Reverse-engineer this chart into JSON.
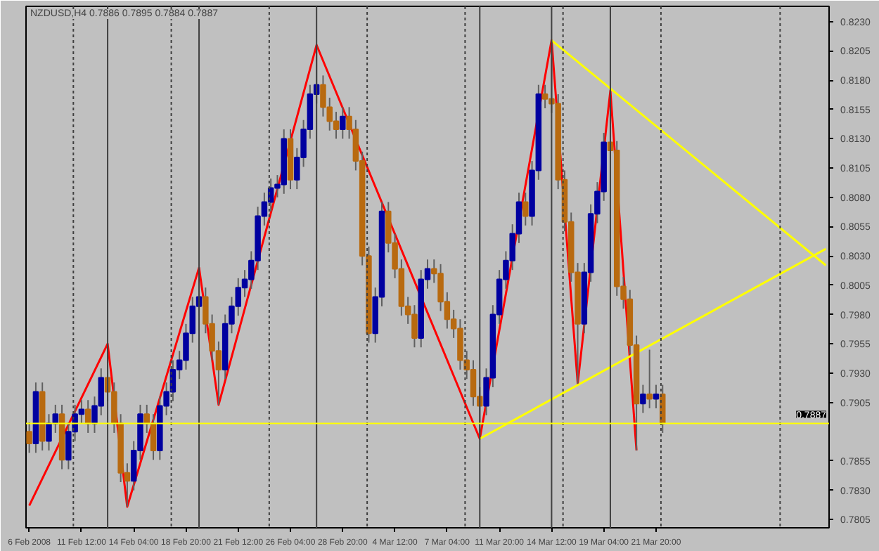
{
  "chart_data": {
    "type": "candlestick",
    "title": "NZDUSD,H4 0.7886 0.7895 0.7884 0.7887",
    "categories": [
      "6 Feb 2008",
      null,
      null,
      null,
      null,
      null,
      null,
      null,
      "11 Feb 12:00",
      null,
      null,
      null,
      null,
      null,
      null,
      null,
      "14 Feb 04:00",
      null,
      null,
      null,
      null,
      null,
      null,
      null,
      "18 Feb 20:00",
      null,
      null,
      null,
      null,
      null,
      null,
      null,
      "21 Feb 12:00",
      null,
      null,
      null,
      null,
      null,
      null,
      null,
      "26 Feb 04:00",
      null,
      null,
      null,
      null,
      null,
      null,
      null,
      "28 Feb 20:00",
      null,
      null,
      null,
      null,
      null,
      null,
      null,
      "4 Mar 12:00",
      null,
      null,
      null,
      null,
      null,
      null,
      null,
      "7 Mar 04:00",
      null,
      null,
      null,
      null,
      null,
      null,
      null,
      "11 Mar 20:00",
      null,
      null,
      null,
      null,
      null,
      null,
      null,
      "14 Mar 12:00",
      null,
      null,
      null,
      null,
      null,
      null,
      null,
      "19 Mar 04:00",
      null,
      null,
      null,
      null,
      null,
      null,
      null,
      "21 Mar 20:00",
      null,
      null,
      null,
      null,
      null,
      null,
      null,
      null,
      null,
      null,
      null,
      null,
      null,
      null,
      null,
      null,
      null,
      null,
      null,
      null,
      null,
      null,
      null,
      null,
      null,
      null
    ],
    "ylim": [
      0.7798,
      0.8243
    ],
    "yticks": [
      0.7805,
      {
        "value": 0.783,
        "label": "0.7830"
      },
      0.7855,
      0.7905,
      {
        "value": 0.793,
        "label": "0.7930"
      },
      0.7955,
      {
        "value": 0.798,
        "label": "0.7980"
      },
      0.8005,
      {
        "value": 0.803,
        "label": "0.8030"
      },
      0.8055,
      {
        "value": 0.808,
        "label": "0.8080"
      },
      0.8105,
      {
        "value": 0.813,
        "label": "0.8130"
      },
      0.8155,
      {
        "value": 0.818,
        "label": "0.8180"
      },
      0.8205,
      {
        "value": 0.823,
        "label": "0.8230"
      }
    ],
    "ohlc": [
      [
        0.788,
        0.7888,
        0.7862,
        0.787
      ],
      [
        0.787,
        0.7922,
        0.7862,
        0.7914
      ],
      [
        0.7914,
        0.7922,
        0.7864,
        0.7872
      ],
      [
        0.7872,
        0.7895,
        0.7864,
        0.7887
      ],
      [
        0.7887,
        0.7903,
        0.7879,
        0.7895
      ],
      [
        0.7895,
        0.7903,
        0.7848,
        0.7856
      ],
      [
        0.7856,
        0.7888,
        0.7848,
        0.788
      ],
      [
        0.788,
        0.7903,
        0.7872,
        0.7895
      ],
      [
        0.7895,
        0.7907,
        0.7887,
        0.7899
      ],
      [
        0.7899,
        0.7907,
        0.7879,
        0.7887
      ],
      [
        0.7887,
        0.791,
        0.7879,
        0.7902
      ],
      [
        0.7902,
        0.7934,
        0.7894,
        0.7926
      ],
      [
        0.7926,
        0.7955,
        0.7906,
        0.7914
      ],
      [
        0.7914,
        0.7922,
        0.7879,
        0.7887
      ],
      [
        0.7887,
        0.7895,
        0.7837,
        0.7845
      ],
      [
        0.7845,
        0.7853,
        0.7816,
        0.7838
      ],
      [
        0.7838,
        0.7872,
        0.783,
        0.7864
      ],
      [
        0.7864,
        0.7903,
        0.7856,
        0.7895
      ],
      [
        0.7895,
        0.7903,
        0.7879,
        0.7887
      ],
      [
        0.7887,
        0.7895,
        0.7856,
        0.7864
      ],
      [
        0.7864,
        0.791,
        0.7856,
        0.7902
      ],
      [
        0.7902,
        0.7922,
        0.7894,
        0.7914
      ],
      [
        0.7914,
        0.7941,
        0.7906,
        0.7933
      ],
      [
        0.7933,
        0.7949,
        0.7925,
        0.7941
      ],
      [
        0.7941,
        0.7972,
        0.7933,
        0.7964
      ],
      [
        0.7964,
        0.7995,
        0.7956,
        0.7987
      ],
      [
        0.7987,
        0.802,
        0.7979,
        0.7995
      ],
      [
        0.7995,
        0.8003,
        0.7964,
        0.7972
      ],
      [
        0.7972,
        0.798,
        0.7941,
        0.7949
      ],
      [
        0.7949,
        0.7957,
        0.7903,
        0.7933
      ],
      [
        0.7933,
        0.798,
        0.7925,
        0.7972
      ],
      [
        0.7972,
        0.7995,
        0.7964,
        0.7987
      ],
      [
        0.7987,
        0.8011,
        0.7979,
        0.8003
      ],
      [
        0.8003,
        0.8018,
        0.7995,
        0.801
      ],
      [
        0.801,
        0.8034,
        0.8002,
        0.8026
      ],
      [
        0.8026,
        0.8072,
        0.8018,
        0.8064
      ],
      [
        0.8064,
        0.8084,
        0.8056,
        0.8076
      ],
      [
        0.8076,
        0.8096,
        0.8068,
        0.8088
      ],
      [
        0.8088,
        0.8099,
        0.808,
        0.8091
      ],
      [
        0.8091,
        0.8138,
        0.8083,
        0.813
      ],
      [
        0.813,
        0.8138,
        0.8087,
        0.8095
      ],
      [
        0.8095,
        0.8122,
        0.8087,
        0.8114
      ],
      [
        0.8114,
        0.8146,
        0.8106,
        0.8138
      ],
      [
        0.8138,
        0.8176,
        0.813,
        0.8168
      ],
      [
        0.8168,
        0.821,
        0.816,
        0.8176
      ],
      [
        0.8176,
        0.8184,
        0.8149,
        0.8157
      ],
      [
        0.8157,
        0.8165,
        0.8137,
        0.8145
      ],
      [
        0.8145,
        0.8153,
        0.813,
        0.8138
      ],
      [
        0.8138,
        0.8157,
        0.813,
        0.8149
      ],
      [
        0.8149,
        0.8157,
        0.813,
        0.8138
      ],
      [
        0.8138,
        0.8146,
        0.8103,
        0.8111
      ],
      [
        0.8111,
        0.8119,
        0.8022,
        0.803
      ],
      [
        0.803,
        0.8038,
        0.7956,
        0.7964
      ],
      [
        0.7964,
        0.8003,
        0.7956,
        0.7995
      ],
      [
        0.7995,
        0.8076,
        0.7987,
        0.8068
      ],
      [
        0.8068,
        0.8076,
        0.8033,
        0.8041
      ],
      [
        0.8041,
        0.8049,
        0.8011,
        0.8019
      ],
      [
        0.8019,
        0.8027,
        0.7979,
        0.7987
      ],
      [
        0.7987,
        0.7995,
        0.7972,
        0.798
      ],
      [
        0.798,
        0.7988,
        0.7952,
        0.796
      ],
      [
        0.796,
        0.8018,
        0.7952,
        0.801
      ],
      [
        0.801,
        0.8027,
        0.8002,
        0.8019
      ],
      [
        0.8019,
        0.8027,
        0.8007,
        0.8015
      ],
      [
        0.8015,
        0.8023,
        0.7983,
        0.7991
      ],
      [
        0.7991,
        0.7999,
        0.7968,
        0.7976
      ],
      [
        0.7976,
        0.7984,
        0.796,
        0.7968
      ],
      [
        0.7968,
        0.7976,
        0.7933,
        0.7941
      ],
      [
        0.7941,
        0.7949,
        0.7925,
        0.7933
      ],
      [
        0.7933,
        0.7941,
        0.7902,
        0.791
      ],
      [
        0.791,
        0.7918,
        0.7874,
        0.7902
      ],
      [
        0.7902,
        0.7934,
        0.7894,
        0.7926
      ],
      [
        0.7926,
        0.7988,
        0.7918,
        0.798
      ],
      [
        0.798,
        0.8018,
        0.7972,
        0.801
      ],
      [
        0.801,
        0.8034,
        0.8002,
        0.8026
      ],
      [
        0.8026,
        0.8057,
        0.8018,
        0.8049
      ],
      [
        0.8049,
        0.8084,
        0.8041,
        0.8076
      ],
      [
        0.8076,
        0.8084,
        0.8056,
        0.8064
      ],
      [
        0.8064,
        0.8111,
        0.8056,
        0.8103
      ],
      [
        0.8103,
        0.8176,
        0.8095,
        0.8168
      ],
      [
        0.8168,
        0.8176,
        0.8156,
        0.8164
      ],
      [
        0.8164,
        0.8214,
        0.8152,
        0.816
      ],
      [
        0.816,
        0.8168,
        0.8087,
        0.8095
      ],
      [
        0.8095,
        0.8103,
        0.8051,
        0.8059
      ],
      [
        0.8059,
        0.8067,
        0.8008,
        0.8016
      ],
      [
        0.8016,
        0.8024,
        0.7921,
        0.7972
      ],
      [
        0.7972,
        0.8024,
        0.7964,
        0.8016
      ],
      [
        0.8016,
        0.8074,
        0.8008,
        0.8066
      ],
      [
        0.8066,
        0.8093,
        0.8058,
        0.8085
      ],
      [
        0.8085,
        0.8135,
        0.8077,
        0.8127
      ],
      [
        0.8127,
        0.8171,
        0.8112,
        0.812
      ],
      [
        0.812,
        0.8128,
        0.7996,
        0.8004
      ],
      [
        0.8004,
        0.8012,
        0.7985,
        0.7993
      ],
      [
        0.7993,
        0.8001,
        0.7946,
        0.7954
      ],
      [
        0.7954,
        0.7962,
        0.7864,
        0.7904
      ],
      [
        0.7904,
        0.792,
        0.7896,
        0.7912
      ],
      [
        0.7912,
        0.795,
        0.79,
        0.7908
      ],
      [
        0.7908,
        0.792,
        0.79,
        0.7912
      ],
      [
        0.7912,
        0.792,
        0.7879,
        0.7887
      ],
      null,
      null,
      null,
      null,
      null,
      null,
      null,
      null,
      null,
      null,
      null,
      null,
      null,
      null,
      null,
      null,
      null,
      null,
      null,
      null,
      null,
      null,
      null,
      null,
      null
    ],
    "colors": [
      "#b86a10",
      "#0000a0",
      "#b86a10",
      "#0000a0",
      "#0000a0",
      "#b86a10",
      "#0000a0",
      "#0000a0",
      "#0000a0",
      "#b86a10",
      "#0000a0",
      "#0000a0",
      "#b86a10",
      "#b86a10",
      "#b86a10",
      "#b86a10",
      "#0000a0",
      "#0000a0",
      "#b86a10",
      "#b86a10",
      "#0000a0",
      "#0000a0",
      "#0000a0",
      "#0000a0",
      "#0000a0",
      "#0000a0",
      "#0000a0",
      "#b86a10",
      "#b86a10",
      "#b86a10",
      "#0000a0",
      "#0000a0",
      "#0000a0",
      "#0000a0",
      "#0000a0",
      "#0000a0",
      "#0000a0",
      "#0000a0",
      "#0000a0",
      "#0000a0",
      "#b86a10",
      "#0000a0",
      "#0000a0",
      "#0000a0",
      "#0000a0",
      "#b86a10",
      "#b86a10",
      "#b86a10",
      "#0000a0",
      "#b86a10",
      "#b86a10",
      "#b86a10",
      "#b86a10",
      "#0000a0",
      "#0000a0",
      "#b86a10",
      "#b86a10",
      "#b86a10",
      "#b86a10",
      "#b86a10",
      "#0000a0",
      "#0000a0",
      "#b86a10",
      "#b86a10",
      "#b86a10",
      "#b86a10",
      "#b86a10",
      "#b86a10",
      "#b86a10",
      "#b86a10",
      "#0000a0",
      "#0000a0",
      "#0000a0",
      "#0000a0",
      "#0000a0",
      "#0000a0",
      "#b86a10",
      "#0000a0",
      "#0000a0",
      "#b86a10",
      "#b86a10",
      "#b86a10",
      "#b86a10",
      "#b86a10",
      "#b86a10",
      "#0000a0",
      "#0000a0",
      "#0000a0",
      "#0000a0",
      "#b86a10",
      "#b86a10",
      "#b86a10",
      "#b86a10",
      "#b86a10",
      "#0000a0",
      "#b86a10",
      "#0000a0",
      "#b86a10",
      null,
      null,
      null,
      null,
      null,
      null,
      null,
      null,
      null,
      null,
      null,
      null,
      null,
      null,
      null,
      null,
      null,
      null,
      null,
      null,
      null,
      null,
      null,
      null,
      null
    ],
    "series": [
      {
        "type": "line",
        "color": "#ff0000",
        "values": [
          0.7817,
          null,
          null,
          null,
          null,
          null,
          null,
          null,
          null,
          null,
          null,
          null,
          0.7955,
          null,
          null,
          0.7816,
          null,
          null,
          null,
          null,
          null,
          null,
          null,
          null,
          null,
          null,
          0.802,
          null,
          null,
          0.7903,
          null,
          null,
          null,
          null,
          null,
          null,
          null,
          null,
          null,
          null,
          null,
          null,
          null,
          null,
          0.821,
          null,
          null,
          null,
          null,
          null,
          null,
          null,
          null,
          null,
          null,
          null,
          null,
          null,
          null,
          null,
          null,
          null,
          null,
          null,
          null,
          null,
          null,
          null,
          null,
          0.7874,
          null,
          null,
          null,
          null,
          null,
          null,
          null,
          null,
          null,
          null,
          0.8214,
          null,
          null,
          null,
          0.7921,
          null,
          null,
          null,
          null,
          0.8171,
          null,
          null,
          null,
          0.7864,
          null,
          null,
          null,
          null,
          null,
          null,
          null,
          null,
          null,
          null,
          null,
          null,
          null,
          null,
          null,
          null,
          null,
          null,
          null,
          null,
          null,
          null,
          null,
          null,
          null,
          null,
          null,
          null,
          null
        ]
      },
      {
        "type": "line",
        "color": "#ffff00",
        "values": [
          null,
          null,
          null,
          null,
          null,
          null,
          null,
          null,
          null,
          null,
          null,
          null,
          null,
          null,
          null,
          null,
          null,
          null,
          null,
          null,
          null,
          null,
          null,
          null,
          null,
          null,
          null,
          null,
          null,
          null,
          null,
          null,
          null,
          null,
          null,
          null,
          null,
          null,
          null,
          null,
          null,
          null,
          null,
          null,
          null,
          null,
          null,
          null,
          null,
          null,
          null,
          null,
          null,
          null,
          null,
          null,
          null,
          null,
          null,
          null,
          null,
          null,
          null,
          null,
          null,
          null,
          null,
          null,
          null,
          null,
          null,
          null,
          null,
          null,
          null,
          null,
          null,
          null,
          null,
          null,
          0.8214,
          null,
          null,
          null,
          null,
          null,
          null,
          null,
          null,
          null,
          null,
          null,
          null,
          null,
          null,
          null,
          null,
          null,
          null,
          null,
          null,
          null,
          null,
          null,
          null,
          null,
          null,
          null,
          null,
          null,
          null,
          null,
          null,
          null,
          null,
          null,
          null,
          null,
          null,
          null,
          null,
          null,
          0.8022
        ]
      },
      {
        "type": "line",
        "color": "#ffff00",
        "values": [
          null,
          null,
          null,
          null,
          null,
          null,
          null,
          null,
          null,
          null,
          null,
          null,
          null,
          null,
          null,
          null,
          null,
          null,
          null,
          null,
          null,
          null,
          null,
          null,
          null,
          null,
          null,
          null,
          null,
          null,
          null,
          null,
          null,
          null,
          null,
          null,
          null,
          null,
          null,
          null,
          null,
          null,
          null,
          null,
          null,
          null,
          null,
          null,
          null,
          null,
          null,
          null,
          null,
          null,
          null,
          null,
          null,
          null,
          null,
          null,
          null,
          null,
          null,
          null,
          null,
          null,
          null,
          null,
          null,
          0.7874,
          null,
          null,
          null,
          null,
          null,
          null,
          null,
          null,
          null,
          null,
          null,
          null,
          null,
          null,
          null,
          null,
          null,
          null,
          null,
          null,
          null,
          null,
          null,
          null,
          null,
          null,
          null,
          null,
          null,
          null,
          null,
          null,
          null,
          null,
          null,
          null,
          null,
          null,
          null,
          null,
          null,
          null,
          null,
          null,
          null,
          null,
          null,
          null,
          null,
          null,
          null,
          null,
          0.8036
        ]
      }
    ],
    "ref_lines": [
      {
        "axis": "y",
        "value": 0.7887,
        "label": "0.7887",
        "color": "#ffff00"
      }
    ]
  }
}
